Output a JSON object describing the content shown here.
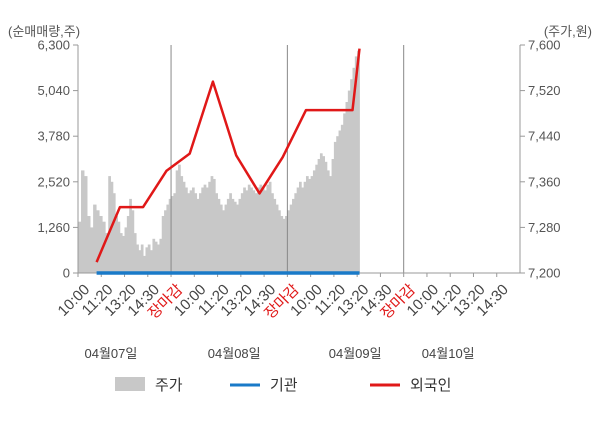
{
  "chart_data": {
    "type": "bar+line",
    "left_axis_unit": "(순매매량,주)",
    "right_axis_unit": "(주가,원)",
    "left_ticks": [
      "6,300",
      "5,040",
      "3,780",
      "2,520",
      "1,260",
      "0"
    ],
    "left_tick_values": [
      6300,
      5040,
      3780,
      2520,
      1260,
      0
    ],
    "right_ticks": [
      "7,600",
      "7,520",
      "7,440",
      "7,360",
      "7,280",
      "7,200"
    ],
    "right_tick_values": [
      7600,
      7520,
      7440,
      7360,
      7280,
      7200
    ],
    "ylim_left": [
      0,
      6300
    ],
    "ylim_right": [
      7200,
      7600
    ],
    "x_ticks": [
      "10:00",
      "11:20",
      "13:20",
      "14:30",
      "장마감",
      "10:00",
      "11:20",
      "13:20",
      "14:30",
      "장마감",
      "10:00",
      "11:20",
      "13:20",
      "14:30",
      "장마감",
      "10:00",
      "11:20",
      "13:20",
      "14:30"
    ],
    "x_tick_is_close": [
      false,
      false,
      false,
      false,
      true,
      false,
      false,
      false,
      false,
      true,
      false,
      false,
      false,
      false,
      true,
      false,
      false,
      false,
      false
    ],
    "dates": [
      "04월07일",
      "04월08일",
      "04월09일",
      "04월10일"
    ],
    "day_boundaries": [
      4,
      9,
      14
    ],
    "n_slots": 19,
    "price_bars": {
      "name": "주가",
      "color": "#c8c8c8",
      "segments": [
        {
          "x0": 0.0,
          "x1": 1.3,
          "values": [
            7290,
            7380,
            7370,
            7300,
            7280,
            7320,
            7310,
            7300,
            7290,
            7270
          ]
        },
        {
          "x0": 1.3,
          "x1": 2.4,
          "values": [
            7370,
            7360,
            7340,
            7300,
            7290,
            7270,
            7265,
            7280,
            7300,
            7330,
            7310
          ]
        },
        {
          "x0": 2.4,
          "x1": 3.4,
          "values": [
            7270,
            7250,
            7240,
            7250,
            7230,
            7245,
            7250,
            7240,
            7260,
            7255
          ]
        },
        {
          "x0": 3.4,
          "x1": 4.2,
          "values": [
            7250,
            7260,
            7300,
            7310,
            7320,
            7330,
            7335,
            7340
          ]
        },
        {
          "x0": 4.2,
          "x1": 5.5,
          "values": [
            7380,
            7390,
            7370,
            7360,
            7350,
            7340,
            7345,
            7350,
            7340,
            7330,
            7340,
            7350,
            7355
          ]
        },
        {
          "x0": 5.5,
          "x1": 6.8,
          "values": [
            7350,
            7360,
            7370,
            7365,
            7340,
            7330,
            7320,
            7310,
            7320,
            7330,
            7340,
            7330,
            7325
          ]
        },
        {
          "x0": 6.8,
          "x1": 8.3,
          "values": [
            7320,
            7330,
            7340,
            7350,
            7345,
            7355,
            7350,
            7345,
            7340,
            7350,
            7355,
            7350,
            7345,
            7355,
            7360
          ]
        },
        {
          "x0": 8.3,
          "x1": 9.6,
          "values": [
            7340,
            7330,
            7320,
            7310,
            7300,
            7295,
            7300,
            7310,
            7320,
            7330,
            7340,
            7350,
            7360
          ]
        },
        {
          "x0": 9.6,
          "x1": 10.9,
          "values": [
            7350,
            7360,
            7370,
            7365,
            7370,
            7380,
            7390,
            7400,
            7410,
            7405,
            7395,
            7380,
            7370
          ]
        },
        {
          "x0": 10.9,
          "x1": 12.1,
          "values": [
            7400,
            7430,
            7440,
            7450,
            7460,
            7480,
            7500,
            7520,
            7540,
            7560,
            7580,
            7590
          ]
        }
      ]
    },
    "series": [
      {
        "name": "기관",
        "axis": "left",
        "color": "#1a7ac8",
        "x": [
          0.8,
          12.1
        ],
        "values": [
          0,
          0
        ]
      },
      {
        "name": "외국인",
        "axis": "left",
        "color": "#e01818",
        "x": [
          0.8,
          1.8,
          2.8,
          3.8,
          4.8,
          5.8,
          6.8,
          7.8,
          8.8,
          9.8,
          10.8,
          11.8,
          12.1
        ],
        "values": [
          300,
          1820,
          1820,
          2820,
          3300,
          5290,
          3250,
          2200,
          3200,
          4500,
          4500,
          4500,
          6200
        ]
      }
    ],
    "legend": {
      "placement": "bottom",
      "items": [
        {
          "label": "주가",
          "style": "area",
          "color": "#c8c8c8"
        },
        {
          "label": "기관",
          "style": "line",
          "color": "#1a7ac8"
        },
        {
          "label": "외국인",
          "style": "line",
          "color": "#e01818"
        }
      ]
    },
    "grid": false
  }
}
